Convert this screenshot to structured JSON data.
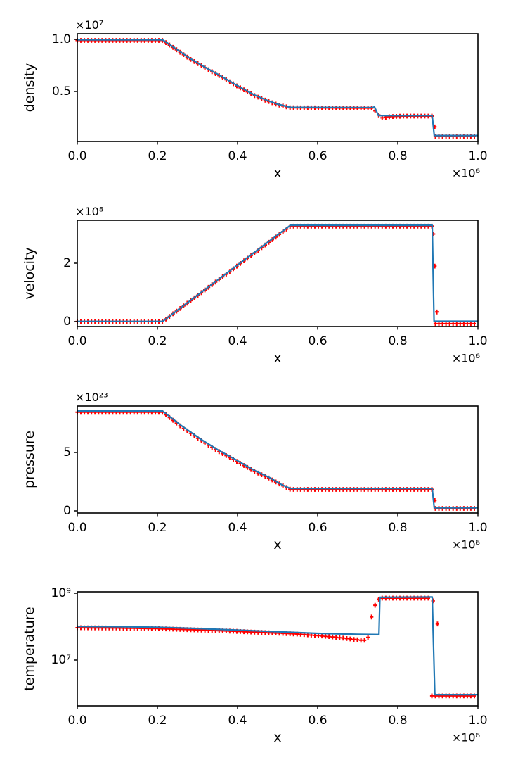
{
  "figure": {
    "background": "#ffffff",
    "frame_color": "#000000",
    "text_color": "#000000",
    "line_color": "#1f77b4",
    "marker_color": "#ff0000",
    "marker_glyph": "+"
  },
  "chart_data": [
    {
      "name": "density",
      "type": "line",
      "ylabel": "density",
      "yscale": "linear",
      "y_offset_text": "×10⁷",
      "ylim": [
        0.02,
        1.054
      ],
      "yticks": [
        {
          "v": 0.5,
          "label": "0.5"
        },
        {
          "v": 1.0,
          "label": "1.0"
        }
      ],
      "xlabel": "x",
      "x_offset_text": "×10⁶",
      "xlim": [
        0,
        1
      ],
      "xticks": [
        {
          "v": 0,
          "label": "0.0"
        },
        {
          "v": 0.2,
          "label": "0.2"
        },
        {
          "v": 0.4,
          "label": "0.4"
        },
        {
          "v": 0.6,
          "label": "0.6"
        },
        {
          "v": 0.8,
          "label": "0.8"
        },
        {
          "v": 1,
          "label": "1.0"
        }
      ],
      "line": [
        [
          0,
          0.995
        ],
        [
          0.213,
          0.995
        ],
        [
          0.25,
          0.9
        ],
        [
          0.28,
          0.82
        ],
        [
          0.32,
          0.73
        ],
        [
          0.36,
          0.645
        ],
        [
          0.4,
          0.555
        ],
        [
          0.44,
          0.47
        ],
        [
          0.47,
          0.42
        ],
        [
          0.5,
          0.378
        ],
        [
          0.532,
          0.348
        ],
        [
          0.735,
          0.345
        ],
        [
          0.742,
          0.352
        ],
        [
          0.752,
          0.268
        ],
        [
          0.886,
          0.268
        ],
        [
          0.891,
          0.077
        ],
        [
          1,
          0.077
        ]
      ],
      "marker_line": [
        [
          0,
          0.99
        ],
        [
          0.213,
          0.99
        ],
        [
          0.25,
          0.895
        ],
        [
          0.28,
          0.815
        ],
        [
          0.32,
          0.725
        ],
        [
          0.36,
          0.64
        ],
        [
          0.4,
          0.55
        ],
        [
          0.44,
          0.465
        ],
        [
          0.47,
          0.415
        ],
        [
          0.5,
          0.373
        ],
        [
          0.532,
          0.343
        ],
        [
          0.735,
          0.34
        ],
        [
          0.748,
          0.3
        ],
        [
          0.757,
          0.245
        ],
        [
          0.78,
          0.258
        ],
        [
          0.81,
          0.263
        ],
        [
          0.8895,
          0.263
        ],
        [
          0.89,
          0.07
        ],
        [
          1,
          0.07
        ]
      ],
      "extra_markers": [
        [
          0.8925,
          0.16
        ]
      ],
      "marker_spacing": 0.00885
    },
    {
      "name": "velocity",
      "type": "line",
      "ylabel": "velocity",
      "yscale": "linear",
      "y_offset_text": "×10⁸",
      "ylim": [
        -0.17,
        3.47
      ],
      "yticks": [
        {
          "v": 0,
          "label": "0"
        },
        {
          "v": 2,
          "label": "2"
        }
      ],
      "xlabel": "x",
      "x_offset_text": "×10⁶",
      "xlim": [
        0,
        1
      ],
      "xticks": [
        {
          "v": 0,
          "label": "0.0"
        },
        {
          "v": 0.2,
          "label": "0.2"
        },
        {
          "v": 0.4,
          "label": "0.4"
        },
        {
          "v": 0.6,
          "label": "0.6"
        },
        {
          "v": 0.8,
          "label": "0.8"
        },
        {
          "v": 1,
          "label": "1.0"
        }
      ],
      "line": [
        [
          0,
          0.005
        ],
        [
          0.213,
          0.005
        ],
        [
          0.532,
          3.3
        ],
        [
          0.886,
          3.3
        ],
        [
          0.8905,
          0.01
        ],
        [
          1,
          0.01
        ]
      ],
      "marker_line": [
        [
          0,
          0
        ],
        [
          0.213,
          0
        ],
        [
          0.532,
          3.27
        ],
        [
          0.886,
          3.27
        ],
        [
          0.8865,
          -0.07
        ],
        [
          1,
          -0.07
        ]
      ],
      "extra_markers": [
        [
          0.889,
          3.0
        ],
        [
          0.8925,
          1.9
        ],
        [
          0.8975,
          0.33
        ]
      ],
      "marker_spacing": 0.00885
    },
    {
      "name": "pressure",
      "type": "line",
      "ylabel": "pressure",
      "yscale": "linear",
      "y_offset_text": "×10²³",
      "ylim": [
        -0.18,
        8.98
      ],
      "yticks": [
        {
          "v": 0,
          "label": "0"
        },
        {
          "v": 5,
          "label": "5"
        }
      ],
      "xlabel": "x",
      "x_offset_text": "×10⁶",
      "xlim": [
        0,
        1
      ],
      "xticks": [
        {
          "v": 0,
          "label": "0.0"
        },
        {
          "v": 0.2,
          "label": "0.2"
        },
        {
          "v": 0.4,
          "label": "0.4"
        },
        {
          "v": 0.6,
          "label": "0.6"
        },
        {
          "v": 0.8,
          "label": "0.8"
        },
        {
          "v": 1,
          "label": "1.0"
        }
      ],
      "line": [
        [
          0,
          8.55
        ],
        [
          0.213,
          8.55
        ],
        [
          0.26,
          7.3
        ],
        [
          0.31,
          6.1
        ],
        [
          0.35,
          5.25
        ],
        [
          0.4,
          4.3
        ],
        [
          0.44,
          3.5
        ],
        [
          0.48,
          2.85
        ],
        [
          0.51,
          2.25
        ],
        [
          0.532,
          1.92
        ],
        [
          0.886,
          1.92
        ],
        [
          0.891,
          0.26
        ],
        [
          1,
          0.26
        ]
      ],
      "marker_line": [
        [
          0,
          8.45
        ],
        [
          0.213,
          8.45
        ],
        [
          0.26,
          7.2
        ],
        [
          0.31,
          6.0
        ],
        [
          0.35,
          5.15
        ],
        [
          0.4,
          4.2
        ],
        [
          0.44,
          3.42
        ],
        [
          0.48,
          2.78
        ],
        [
          0.51,
          2.2
        ],
        [
          0.532,
          1.84
        ],
        [
          0.8875,
          1.84
        ],
        [
          0.888,
          0.21
        ],
        [
          1,
          0.21
        ]
      ],
      "extra_markers": [
        [
          0.8925,
          0.9
        ]
      ],
      "marker_spacing": 0.00885
    },
    {
      "name": "temperature",
      "type": "line",
      "ylabel": "temperature",
      "yscale": "log",
      "y_offset_text": "",
      "ylim": [
        430000,
        1100000000
      ],
      "yticks": [
        {
          "v": 10000000,
          "label": "10⁷"
        },
        {
          "v": 1000000000,
          "label": "10⁹"
        }
      ],
      "xlabel": "x",
      "x_offset_text": "×10⁶",
      "xlim": [
        0,
        1
      ],
      "xticks": [
        {
          "v": 0,
          "label": "0.0"
        },
        {
          "v": 0.2,
          "label": "0.2"
        },
        {
          "v": 0.4,
          "label": "0.4"
        },
        {
          "v": 0.6,
          "label": "0.6"
        },
        {
          "v": 0.8,
          "label": "0.8"
        },
        {
          "v": 1,
          "label": "1.0"
        }
      ],
      "line": [
        [
          0,
          102000000
        ],
        [
          0.1,
          100000000
        ],
        [
          0.2,
          96000000
        ],
        [
          0.3,
          88000000
        ],
        [
          0.4,
          79000000
        ],
        [
          0.5,
          70500000
        ],
        [
          0.6,
          63000000
        ],
        [
          0.7,
          59000000
        ],
        [
          0.753,
          58000000
        ],
        [
          0.7555,
          750000000
        ],
        [
          0.886,
          770000000
        ],
        [
          0.8925,
          930000
        ],
        [
          1,
          930000
        ]
      ],
      "marker_line": [
        [
          0,
          93000000
        ],
        [
          0.1,
          91000000
        ],
        [
          0.2,
          87000000
        ],
        [
          0.3,
          80000000
        ],
        [
          0.4,
          72000000
        ],
        [
          0.5,
          64000000
        ],
        [
          0.55,
          60000000
        ],
        [
          0.6,
          54000000
        ],
        [
          0.64,
          49000000
        ],
        [
          0.68,
          43000000
        ],
        [
          0.71,
          39000000
        ],
        [
          0.722,
          39000000
        ],
        [
          0.728,
          53000000
        ],
        [
          0.734,
          180000000
        ],
        [
          0.742,
          390000000
        ],
        [
          0.749,
          620000000
        ],
        [
          0.756,
          710000000
        ],
        [
          0.884,
          710000000
        ],
        [
          0.8845,
          850000
        ],
        [
          1,
          850000
        ]
      ],
      "extra_markers": [
        [
          0.888,
          590000000
        ],
        [
          0.899,
          120000000
        ]
      ],
      "marker_spacing": 0.00885
    }
  ]
}
